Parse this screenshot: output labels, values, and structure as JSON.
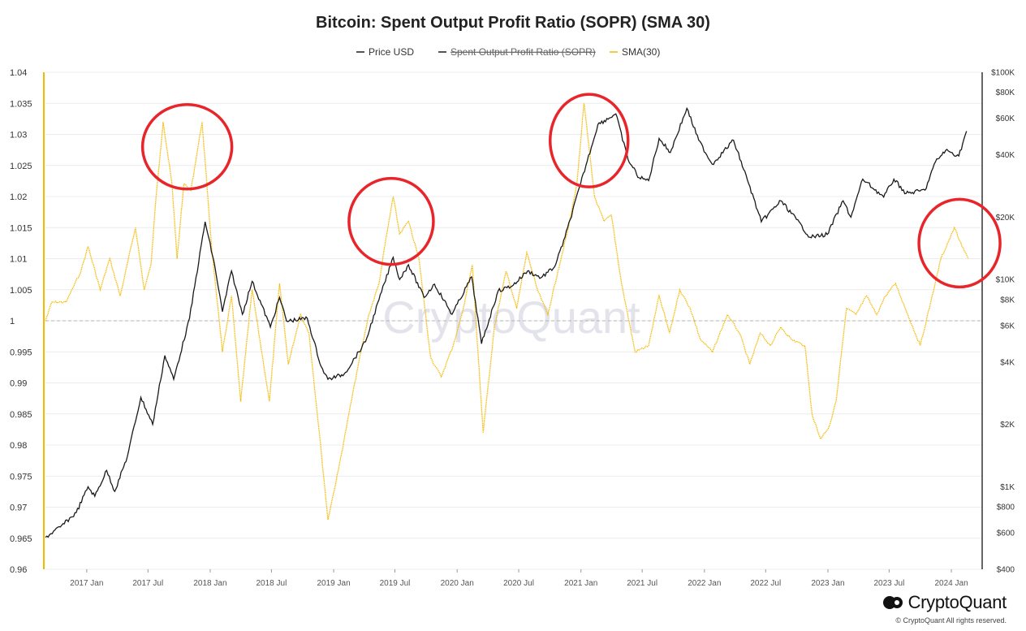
{
  "colors": {
    "price": "#1a1a1a",
    "sopr_sma": "#f5b800",
    "highlight_circle": "#e8252b",
    "grid": "#ececec",
    "baseline": "#b5b5b5"
  },
  "watermark": "CryptoQuant",
  "brand": {
    "name": "CryptoQuant",
    "copyright": "© CryptoQuant All rights reserved.",
    "logo_icon": "cryptoquant-logo-icon"
  },
  "chart_data": {
    "type": "line",
    "title": "Bitcoin: Spent Output Profit Ratio (SOPR) (SMA 30)",
    "legend": {
      "placement": "top-center",
      "items": [
        {
          "label": "Price USD",
          "color": "#1a1a1a",
          "hidden": false
        },
        {
          "label": "Spent Output Profit Ratio (SOPR)",
          "color": "#1a1a1a",
          "hidden": true
        },
        {
          "label": "SMA(30)",
          "color": "#f5b800",
          "hidden": false
        }
      ]
    },
    "x_axis": {
      "type": "date",
      "range": [
        "2016-09-01",
        "2024-04-01"
      ],
      "ticks": [
        {
          "date": "2017-01-01",
          "label": "2017 Jan"
        },
        {
          "date": "2017-07-01",
          "label": "2017 Jul"
        },
        {
          "date": "2018-01-01",
          "label": "2018 Jan"
        },
        {
          "date": "2018-07-01",
          "label": "2018 Jul"
        },
        {
          "date": "2019-01-01",
          "label": "2019 Jan"
        },
        {
          "date": "2019-07-01",
          "label": "2019 Jul"
        },
        {
          "date": "2020-01-01",
          "label": "2020 Jan"
        },
        {
          "date": "2020-07-01",
          "label": "2020 Jul"
        },
        {
          "date": "2021-01-01",
          "label": "2021 Jan"
        },
        {
          "date": "2021-07-01",
          "label": "2021 Jul"
        },
        {
          "date": "2022-01-01",
          "label": "2022 Jan"
        },
        {
          "date": "2022-07-01",
          "label": "2022 Jul"
        },
        {
          "date": "2023-01-01",
          "label": "2023 Jan"
        },
        {
          "date": "2023-07-01",
          "label": "2023 Jul"
        },
        {
          "date": "2024-01-01",
          "label": "2024 Jan"
        }
      ]
    },
    "y_left": {
      "range": [
        0.96,
        1.04
      ],
      "baseline": 1,
      "ticks": [
        {
          "value": 1.04,
          "label": "1.04"
        },
        {
          "value": 1.035,
          "label": "1.035"
        },
        {
          "value": 1.03,
          "label": "1.03"
        },
        {
          "value": 1.025,
          "label": "1.025"
        },
        {
          "value": 1.02,
          "label": "1.02"
        },
        {
          "value": 1.015,
          "label": "1.015"
        },
        {
          "value": 1.01,
          "label": "1.01"
        },
        {
          "value": 1.005,
          "label": "1.005"
        },
        {
          "value": 1,
          "label": "1"
        },
        {
          "value": 0.995,
          "label": "0.995"
        },
        {
          "value": 0.99,
          "label": "0.99"
        },
        {
          "value": 0.985,
          "label": "0.985"
        },
        {
          "value": 0.98,
          "label": "0.98"
        },
        {
          "value": 0.975,
          "label": "0.975"
        },
        {
          "value": 0.97,
          "label": "0.97"
        },
        {
          "value": 0.965,
          "label": "0.965"
        },
        {
          "value": 0.96,
          "label": "0.96"
        }
      ]
    },
    "y_right": {
      "scale": "log",
      "range": [
        400,
        100000
      ],
      "ticks": [
        {
          "value": 100000,
          "label": "$100K"
        },
        {
          "value": 80000,
          "label": "$80K"
        },
        {
          "value": 60000,
          "label": "$60K"
        },
        {
          "value": 40000,
          "label": "$40K"
        },
        {
          "value": 20000,
          "label": "$20K"
        },
        {
          "value": 10000,
          "label": "$10K"
        },
        {
          "value": 8000,
          "label": "$8K"
        },
        {
          "value": 6000,
          "label": "$6K"
        },
        {
          "value": 4000,
          "label": "$4K"
        },
        {
          "value": 2000,
          "label": "$2K"
        },
        {
          "value": 1000,
          "label": "$1K"
        },
        {
          "value": 800,
          "label": "$800"
        },
        {
          "value": 600,
          "label": "$600"
        },
        {
          "value": 400,
          "label": "$400"
        }
      ]
    },
    "series": [
      {
        "name": "Price USD",
        "axis": "right",
        "points": [
          [
            "2016-09-01",
            570
          ],
          [
            "2016-10-15",
            640
          ],
          [
            "2016-12-01",
            750
          ],
          [
            "2017-01-05",
            1000
          ],
          [
            "2017-01-25",
            900
          ],
          [
            "2017-03-01",
            1200
          ],
          [
            "2017-03-25",
            950
          ],
          [
            "2017-05-01",
            1400
          ],
          [
            "2017-06-10",
            2700
          ],
          [
            "2017-07-15",
            2000
          ],
          [
            "2017-08-20",
            4300
          ],
          [
            "2017-09-15",
            3300
          ],
          [
            "2017-11-01",
            6500
          ],
          [
            "2017-12-17",
            19000
          ],
          [
            "2018-01-15",
            11500
          ],
          [
            "2018-02-06",
            7000
          ],
          [
            "2018-03-05",
            11000
          ],
          [
            "2018-04-06",
            6800
          ],
          [
            "2018-05-05",
            9800
          ],
          [
            "2018-06-28",
            5900
          ],
          [
            "2018-07-25",
            8200
          ],
          [
            "2018-08-15",
            6300
          ],
          [
            "2018-10-15",
            6500
          ],
          [
            "2018-11-25",
            3800
          ],
          [
            "2018-12-15",
            3300
          ],
          [
            "2019-02-01",
            3500
          ],
          [
            "2019-04-05",
            5000
          ],
          [
            "2019-05-15",
            8000
          ],
          [
            "2019-06-26",
            12800
          ],
          [
            "2019-07-15",
            10000
          ],
          [
            "2019-08-10",
            11800
          ],
          [
            "2019-09-25",
            8200
          ],
          [
            "2019-10-26",
            9500
          ],
          [
            "2019-12-17",
            6800
          ],
          [
            "2020-02-13",
            10300
          ],
          [
            "2020-03-13",
            4900
          ],
          [
            "2020-05-01",
            8800
          ],
          [
            "2020-06-15",
            9400
          ],
          [
            "2020-07-27",
            11000
          ],
          [
            "2020-09-05",
            10200
          ],
          [
            "2020-10-15",
            11500
          ],
          [
            "2020-11-15",
            16000
          ],
          [
            "2020-12-31",
            29000
          ],
          [
            "2021-02-20",
            56000
          ],
          [
            "2021-04-14",
            63000
          ],
          [
            "2021-05-20",
            38000
          ],
          [
            "2021-06-22",
            31000
          ],
          [
            "2021-07-20",
            30000
          ],
          [
            "2021-08-20",
            48000
          ],
          [
            "2021-09-22",
            41000
          ],
          [
            "2021-11-10",
            67000
          ],
          [
            "2021-12-15",
            47000
          ],
          [
            "2022-01-24",
            36000
          ],
          [
            "2022-03-28",
            47000
          ],
          [
            "2022-05-12",
            29000
          ],
          [
            "2022-06-18",
            19000
          ],
          [
            "2022-08-15",
            24000
          ],
          [
            "2022-09-30",
            19500
          ],
          [
            "2022-11-09",
            16000
          ],
          [
            "2022-12-30",
            16500
          ],
          [
            "2023-02-15",
            24000
          ],
          [
            "2023-03-10",
            20000
          ],
          [
            "2023-04-14",
            30500
          ],
          [
            "2023-06-15",
            25000
          ],
          [
            "2023-07-15",
            30500
          ],
          [
            "2023-08-20",
            26000
          ],
          [
            "2023-10-15",
            27000
          ],
          [
            "2023-11-15",
            37000
          ],
          [
            "2023-12-15",
            42000
          ],
          [
            "2024-01-23",
            39500
          ],
          [
            "2024-02-15",
            52000
          ]
        ]
      },
      {
        "name": "SMA(30)",
        "axis": "left",
        "points": [
          [
            "2016-09-01",
            1.0
          ],
          [
            "2016-09-20",
            1.003
          ],
          [
            "2016-11-01",
            1.003
          ],
          [
            "2016-12-15",
            1.008
          ],
          [
            "2017-01-05",
            1.012
          ],
          [
            "2017-02-10",
            1.005
          ],
          [
            "2017-03-10",
            1.01
          ],
          [
            "2017-04-10",
            1.004
          ],
          [
            "2017-05-25",
            1.015
          ],
          [
            "2017-06-20",
            1.005
          ],
          [
            "2017-07-10",
            1.009
          ],
          [
            "2017-07-25",
            1.02
          ],
          [
            "2017-08-15",
            1.032
          ],
          [
            "2017-09-10",
            1.022
          ],
          [
            "2017-09-25",
            1.01
          ],
          [
            "2017-10-15",
            1.022
          ],
          [
            "2017-11-05",
            1.021
          ],
          [
            "2017-12-08",
            1.032
          ],
          [
            "2018-01-05",
            1.012
          ],
          [
            "2018-02-06",
            0.995
          ],
          [
            "2018-03-05",
            1.004
          ],
          [
            "2018-04-01",
            0.987
          ],
          [
            "2018-05-05",
            1.005
          ],
          [
            "2018-06-25",
            0.987
          ],
          [
            "2018-07-25",
            1.006
          ],
          [
            "2018-08-20",
            0.993
          ],
          [
            "2018-09-25",
            1.001
          ],
          [
            "2018-10-20",
            0.998
          ],
          [
            "2018-11-25",
            0.979
          ],
          [
            "2018-12-15",
            0.968
          ],
          [
            "2019-01-15",
            0.976
          ],
          [
            "2019-02-15",
            0.985
          ],
          [
            "2019-03-15",
            0.993
          ],
          [
            "2019-04-15",
            1.001
          ],
          [
            "2019-05-15",
            1.006
          ],
          [
            "2019-06-01",
            1.012
          ],
          [
            "2019-06-26",
            1.02
          ],
          [
            "2019-07-15",
            1.014
          ],
          [
            "2019-08-10",
            1.016
          ],
          [
            "2019-09-10",
            1.01
          ],
          [
            "2019-10-15",
            0.994
          ],
          [
            "2019-11-15",
            0.991
          ],
          [
            "2019-12-20",
            0.996
          ],
          [
            "2020-01-15",
            1.001
          ],
          [
            "2020-02-15",
            1.009
          ],
          [
            "2020-03-18",
            0.982
          ],
          [
            "2020-04-20",
            0.999
          ],
          [
            "2020-05-25",
            1.008
          ],
          [
            "2020-06-25",
            1.002
          ],
          [
            "2020-07-25",
            1.011
          ],
          [
            "2020-08-25",
            1.005
          ],
          [
            "2020-09-25",
            1.001
          ],
          [
            "2020-10-25",
            1.008
          ],
          [
            "2020-11-25",
            1.015
          ],
          [
            "2020-12-20",
            1.022
          ],
          [
            "2021-01-10",
            1.035
          ],
          [
            "2021-02-10",
            1.02
          ],
          [
            "2021-03-10",
            1.016
          ],
          [
            "2021-04-01",
            1.017
          ],
          [
            "2021-05-01",
            1.006
          ],
          [
            "2021-06-10",
            0.995
          ],
          [
            "2021-07-20",
            0.996
          ],
          [
            "2021-08-20",
            1.004
          ],
          [
            "2021-09-20",
            0.998
          ],
          [
            "2021-10-20",
            1.005
          ],
          [
            "2021-11-20",
            1.002
          ],
          [
            "2021-12-20",
            0.997
          ],
          [
            "2022-01-25",
            0.995
          ],
          [
            "2022-03-10",
            1.001
          ],
          [
            "2022-04-15",
            0.998
          ],
          [
            "2022-05-15",
            0.993
          ],
          [
            "2022-06-15",
            0.998
          ],
          [
            "2022-07-15",
            0.996
          ],
          [
            "2022-08-15",
            0.999
          ],
          [
            "2022-09-15",
            0.997
          ],
          [
            "2022-10-25",
            0.996
          ],
          [
            "2022-11-15",
            0.985
          ],
          [
            "2022-12-10",
            0.981
          ],
          [
            "2023-01-05",
            0.983
          ],
          [
            "2023-01-25",
            0.987
          ],
          [
            "2023-02-25",
            1.002
          ],
          [
            "2023-03-25",
            1.001
          ],
          [
            "2023-04-25",
            1.004
          ],
          [
            "2023-05-25",
            1.001
          ],
          [
            "2023-06-20",
            1.004
          ],
          [
            "2023-07-20",
            1.006
          ],
          [
            "2023-08-25",
            1.001
          ],
          [
            "2023-10-01",
            0.996
          ],
          [
            "2023-11-01",
            1.003
          ],
          [
            "2023-12-01",
            1.01
          ],
          [
            "2024-01-10",
            1.015
          ],
          [
            "2024-02-01",
            1.012
          ],
          [
            "2024-02-20",
            1.01
          ]
        ]
      }
    ],
    "annotations": [
      {
        "type": "circle",
        "center": [
          "2017-10-25",
          1.028
        ],
        "color": "#e8252b"
      },
      {
        "type": "circle",
        "center": [
          "2019-06-20",
          1.016
        ],
        "color": "#e8252b"
      },
      {
        "type": "circle",
        "center": [
          "2021-01-25",
          1.029
        ],
        "color": "#e8252b"
      },
      {
        "type": "circle",
        "center": [
          "2024-01-25",
          1.0125
        ],
        "color": "#e8252b"
      }
    ]
  }
}
